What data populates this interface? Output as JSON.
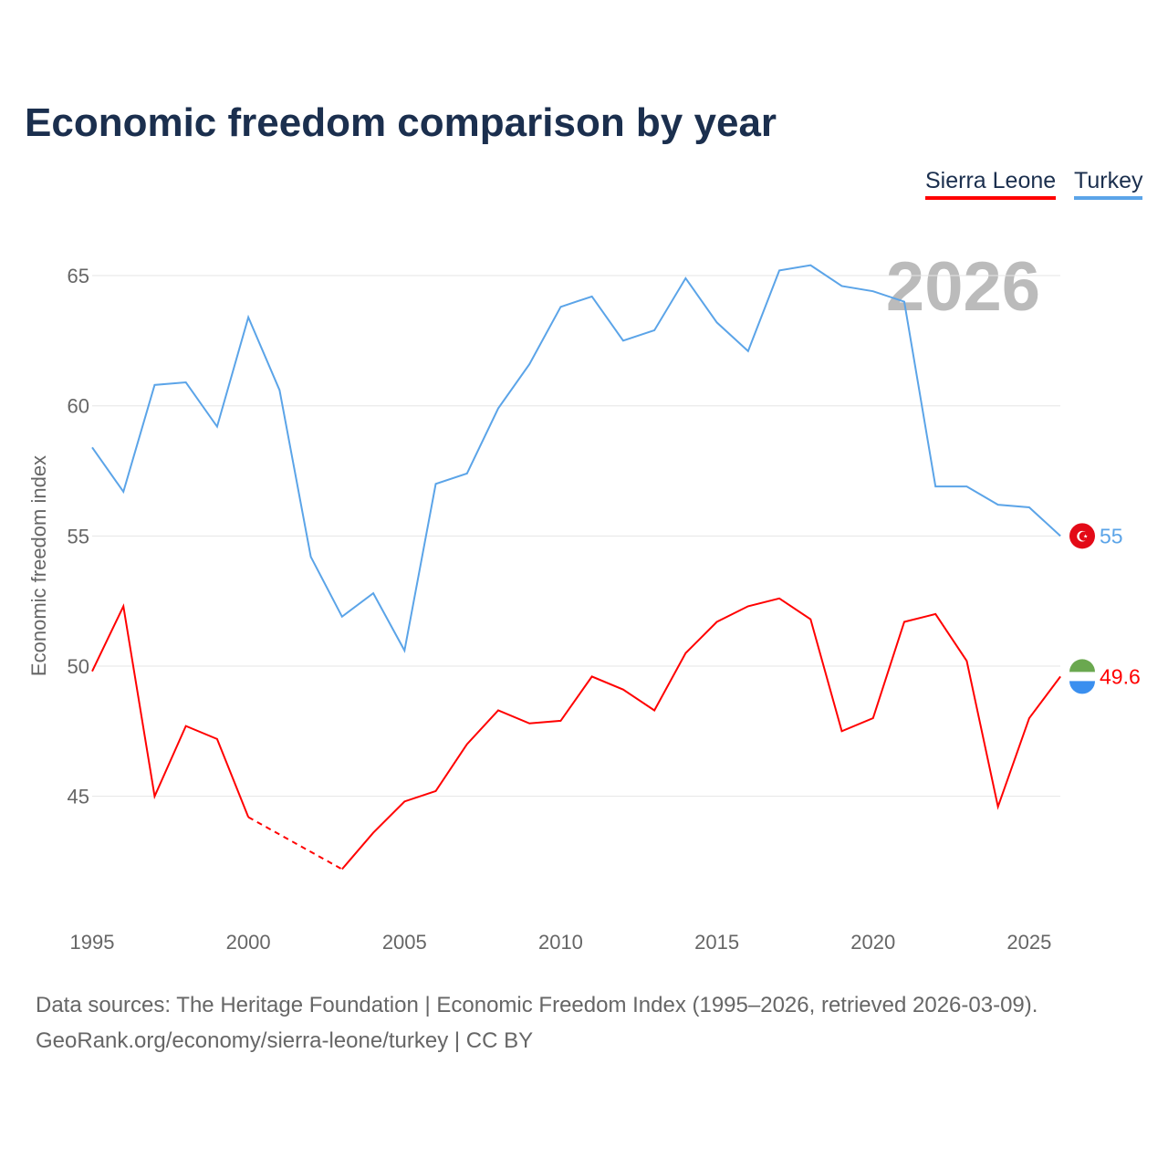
{
  "chart_data": {
    "type": "line",
    "title": "Economic freedom comparison by year",
    "xlabel": "",
    "ylabel": "Economic freedom index",
    "xlim": [
      1995,
      2026
    ],
    "ylim": [
      40,
      68
    ],
    "x_ticks": [
      "1995",
      "2000",
      "2005",
      "2010",
      "2015",
      "2020",
      "2025"
    ],
    "y_ticks": [
      "45",
      "50",
      "55",
      "60",
      "65"
    ],
    "grid": true,
    "legend_placement": "top-right",
    "watermark_year": "2026",
    "x": [
      1995,
      1996,
      1997,
      1998,
      1999,
      2000,
      2001,
      2002,
      2003,
      2004,
      2005,
      2006,
      2007,
      2008,
      2009,
      2010,
      2011,
      2012,
      2013,
      2014,
      2015,
      2016,
      2017,
      2018,
      2019,
      2020,
      2021,
      2022,
      2023,
      2024,
      2025,
      2026
    ],
    "series": [
      {
        "name": "Sierra Leone",
        "color": "#ff0000",
        "end_label": "49.6",
        "values": [
          49.8,
          52.3,
          45.0,
          47.7,
          47.2,
          44.2,
          null,
          null,
          42.2,
          43.6,
          44.8,
          45.2,
          47.0,
          48.3,
          47.8,
          47.9,
          49.6,
          49.1,
          48.3,
          50.5,
          51.7,
          52.3,
          52.6,
          51.8,
          47.5,
          48.0,
          51.7,
          52.0,
          50.2,
          44.6,
          48.0,
          49.6
        ]
      },
      {
        "name": "Turkey",
        "color": "#5ba4e8",
        "end_label": "55",
        "values": [
          58.4,
          56.7,
          60.8,
          60.9,
          59.2,
          63.4,
          60.6,
          54.2,
          51.9,
          52.8,
          50.6,
          57.0,
          57.4,
          59.9,
          61.6,
          63.8,
          64.2,
          62.5,
          62.9,
          64.9,
          63.2,
          62.1,
          65.2,
          65.4,
          64.6,
          64.4,
          64.0,
          56.9,
          56.9,
          56.2,
          56.1,
          55.0
        ]
      }
    ]
  },
  "footer": {
    "line1": "Data sources: The Heritage Foundation | Economic Freedom Index (1995–2026, retrieved 2026-03-09).",
    "line2": "GeoRank.org/economy/sierra-leone/turkey | CC BY"
  }
}
